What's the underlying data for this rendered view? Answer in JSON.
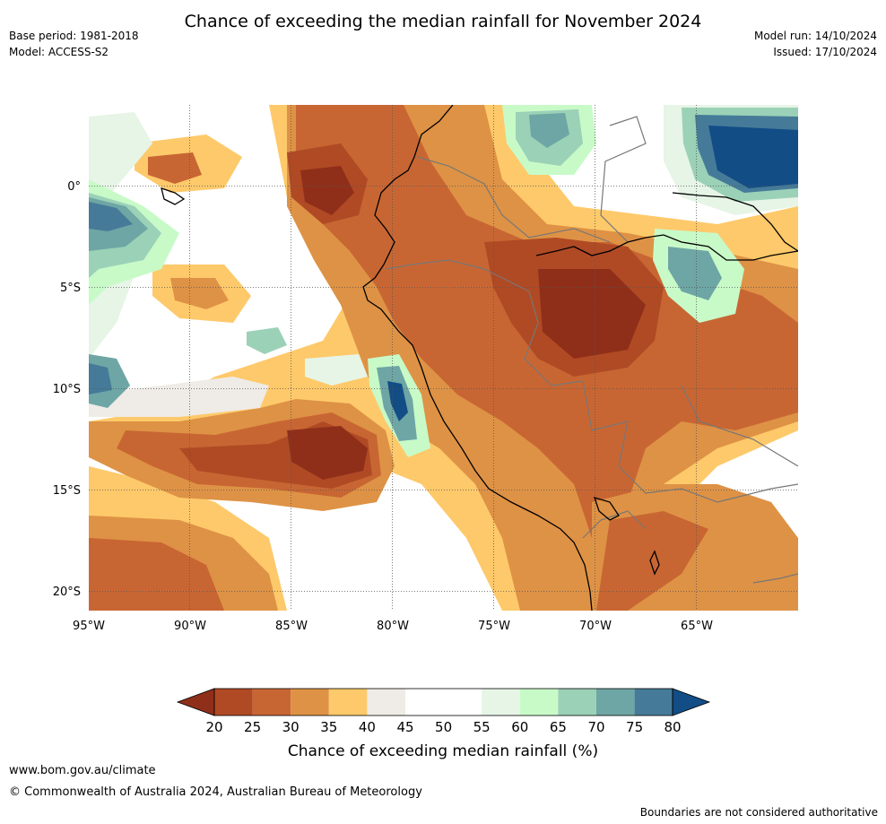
{
  "title": "Chance of exceeding the median rainfall for November 2024",
  "meta": {
    "base_period": "Base period: 1981-2018",
    "model": "Model: ACCESS-S2",
    "model_run": "Model run: 14/10/2024",
    "issued": "Issued: 17/10/2024"
  },
  "map": {
    "lon_ticks": [
      "95°W",
      "90°W",
      "85°W",
      "80°W",
      "75°W",
      "70°W",
      "65°W"
    ],
    "lat_ticks": [
      "0°",
      "5°S",
      "10°S",
      "15°S",
      "20°S"
    ]
  },
  "colorbar": {
    "ticks": [
      "20",
      "25",
      "30",
      "35",
      "40",
      "45",
      "50",
      "55",
      "60",
      "65",
      "70",
      "75",
      "80"
    ],
    "colors": [
      "#8f2f1a",
      "#b04a24",
      "#c86633",
      "#de9245",
      "#fec96a",
      "#efebe6",
      "#ffffff",
      "#ffffff",
      "#e6f5e6",
      "#c8fac8",
      "#9bd1b7",
      "#6ea6a5",
      "#457b98",
      "#124d86"
    ],
    "title": "Chance of exceeding median rainfall (%)"
  },
  "footer": {
    "url": "www.bom.gov.au/climate",
    "copyright": "© Commonwealth of Australia 2024, Australian Bureau of Meteorology",
    "disclaimer": "Boundaries are not considered authoritative"
  }
}
